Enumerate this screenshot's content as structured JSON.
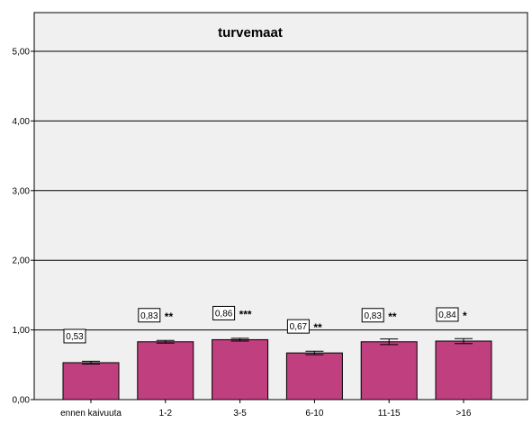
{
  "chart_data": {
    "type": "bar",
    "title": "turvemaat",
    "xlabel": "",
    "ylabel": "",
    "ylim": [
      0,
      5.5
    ],
    "yticks": [
      0,
      1,
      2,
      3,
      4,
      5
    ],
    "ytick_labels": [
      "0,00",
      "1,00",
      "2,00",
      "3,00",
      "4,00",
      "5,00"
    ],
    "grid": true,
    "categories": [
      "ennen kaivuuta",
      "1-2",
      "3-5",
      "6-10",
      "11-15",
      ">16"
    ],
    "values": [
      0.53,
      0.83,
      0.86,
      0.67,
      0.83,
      0.84
    ],
    "value_labels": [
      "0,53",
      "0,83",
      "0,86",
      "0,67",
      "0,83",
      "0,84"
    ],
    "error": [
      0.02,
      0.02,
      0.02,
      0.025,
      0.04,
      0.035
    ],
    "significance": [
      "",
      "**",
      "***",
      "**",
      "**",
      "*"
    ],
    "colors": {
      "bar": "#bf3f7f",
      "bar_edge": "#000000",
      "plot_bg": "#f0f0f0",
      "grid": "#000000"
    }
  }
}
